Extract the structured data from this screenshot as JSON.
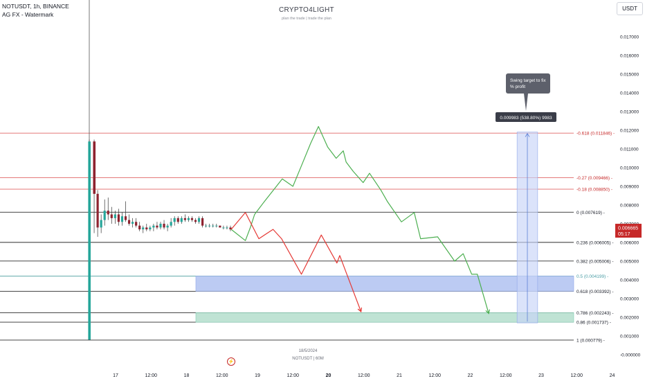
{
  "header": {
    "symbol_line": "NOTUSDT, 1h, BINANCE",
    "indicator_line": "AG FX - Watermark"
  },
  "watermark": {
    "title": "CRYPTO4LIGHT",
    "subtitle": "plan the trade | trade the plan"
  },
  "currency_button": "USDT",
  "footer": {
    "date": "18/5/2024",
    "symbol": "NOTUSDT | 60M"
  },
  "colors": {
    "candle_up": "#26a69a",
    "candle_down": "#8e2330",
    "bull_path": "#4caf50",
    "bear_path": "#e53935",
    "blue_zone": "#bccbf3",
    "green_zone": "#bfe3d4",
    "price_tag": "#c62828",
    "target_line": "#e06666",
    "grey_line": "#787b86"
  },
  "chart_data": {
    "type": "candlestick",
    "x_ticks": [
      "17",
      "12:00",
      "18",
      "12:00",
      "19",
      "12:00",
      "20",
      "12:00",
      "21",
      "12:00",
      "22",
      "12:00",
      "23",
      "12:00",
      "24"
    ],
    "y_ticks": [
      "0.017000",
      "0.016000",
      "0.015000",
      "0.014000",
      "0.013000",
      "0.012000",
      "0.011000",
      "0.010000",
      "0.009000",
      "0.008000",
      "0.007000",
      "0.006000",
      "0.005000",
      "0.004000",
      "0.003000",
      "0.002000",
      "0.001000",
      "-0.000000"
    ],
    "ylim": [
      -0.0001,
      0.0179
    ],
    "current_price": {
      "value": "0.006665",
      "countdown": "05:17",
      "y": 0.006665
    },
    "fib_levels": [
      {
        "label": "-0.618 (0.011846)",
        "y": 0.011846,
        "kind": "target"
      },
      {
        "label": "-0.27 (0.009466)",
        "y": 0.009466,
        "kind": "target"
      },
      {
        "label": "-0.18 (0.008850)",
        "y": 0.00885,
        "kind": "target"
      },
      {
        "label": "0 (0.007619)",
        "y": 0.007619,
        "kind": "grey"
      },
      {
        "label": "0.236 (0.006005)",
        "y": 0.006005,
        "kind": "grey"
      },
      {
        "label": "0.382 (0.005006)",
        "y": 0.005006,
        "kind": "grey"
      },
      {
        "label": "0.5 (0.004199)",
        "y": 0.004199,
        "kind": "teal"
      },
      {
        "label": "0.618 (0.003392)",
        "y": 0.003392,
        "kind": "grey"
      },
      {
        "label": "0.786 (0.002243)",
        "y": 0.002243,
        "kind": "grey"
      },
      {
        "label": "0.86 (0.001737)",
        "y": 0.001737,
        "kind": "grey"
      },
      {
        "label": "1 (0.000779)",
        "y": 0.000779,
        "kind": "grey"
      }
    ],
    "zones": [
      {
        "name": "blue-zone",
        "x_start": 40.0,
        "x_end": 56.0,
        "y_low": 0.003392,
        "y_high": 0.004199
      },
      {
        "name": "green-zone",
        "x_start": 40.0,
        "x_end": 56.0,
        "y_low": 0.001737,
        "y_high": 0.002243
      }
    ],
    "candles": [
      {
        "x": 16.96,
        "o": 0.0008,
        "h": 0.0115,
        "l": 0.0008,
        "c": 0.0114
      },
      {
        "x": 17.0,
        "o": 0.0114,
        "h": 0.0115,
        "l": 0.0065,
        "c": 0.0086
      },
      {
        "x": 17.04,
        "o": 0.0086,
        "h": 0.0088,
        "l": 0.0063,
        "c": 0.0068
      },
      {
        "x": 17.08,
        "o": 0.0068,
        "h": 0.0075,
        "l": 0.0065,
        "c": 0.0072
      },
      {
        "x": 17.13,
        "o": 0.0072,
        "h": 0.0083,
        "l": 0.0069,
        "c": 0.0077
      },
      {
        "x": 17.17,
        "o": 0.0077,
        "h": 0.0084,
        "l": 0.0072,
        "c": 0.0075
      },
      {
        "x": 17.21,
        "o": 0.0075,
        "h": 0.0079,
        "l": 0.007,
        "c": 0.0073
      },
      {
        "x": 17.25,
        "o": 0.0073,
        "h": 0.0077,
        "l": 0.007,
        "c": 0.0075
      },
      {
        "x": 17.29,
        "o": 0.0075,
        "h": 0.0078,
        "l": 0.0069,
        "c": 0.0071
      },
      {
        "x": 17.33,
        "o": 0.0071,
        "h": 0.0076,
        "l": 0.0069,
        "c": 0.0074
      },
      {
        "x": 17.38,
        "o": 0.0074,
        "h": 0.0082,
        "l": 0.0071,
        "c": 0.0072
      },
      {
        "x": 17.42,
        "o": 0.0072,
        "h": 0.0075,
        "l": 0.0069,
        "c": 0.007
      },
      {
        "x": 17.46,
        "o": 0.007,
        "h": 0.0073,
        "l": 0.0068,
        "c": 0.0071
      },
      {
        "x": 17.5,
        "o": 0.0071,
        "h": 0.0073,
        "l": 0.0068,
        "c": 0.0069
      },
      {
        "x": 17.54,
        "o": 0.0069,
        "h": 0.0071,
        "l": 0.0066,
        "c": 0.0067
      },
      {
        "x": 17.58,
        "o": 0.0067,
        "h": 0.0069,
        "l": 0.0065,
        "c": 0.0068
      },
      {
        "x": 17.63,
        "o": 0.0068,
        "h": 0.007,
        "l": 0.0066,
        "c": 0.0067
      },
      {
        "x": 17.67,
        "o": 0.0067,
        "h": 0.0069,
        "l": 0.0066,
        "c": 0.0068
      },
      {
        "x": 17.71,
        "o": 0.0068,
        "h": 0.007,
        "l": 0.0066,
        "c": 0.0069
      },
      {
        "x": 17.75,
        "o": 0.0069,
        "h": 0.0071,
        "l": 0.0067,
        "c": 0.0068
      },
      {
        "x": 17.79,
        "o": 0.0068,
        "h": 0.0071,
        "l": 0.0067,
        "c": 0.007
      },
      {
        "x": 17.83,
        "o": 0.007,
        "h": 0.0072,
        "l": 0.0067,
        "c": 0.0068
      },
      {
        "x": 17.88,
        "o": 0.0068,
        "h": 0.007,
        "l": 0.0066,
        "c": 0.0069
      },
      {
        "x": 17.92,
        "o": 0.0069,
        "h": 0.0073,
        "l": 0.0068,
        "c": 0.0071
      },
      {
        "x": 17.96,
        "o": 0.0071,
        "h": 0.0074,
        "l": 0.0069,
        "c": 0.0073
      },
      {
        "x": 18.0,
        "o": 0.0073,
        "h": 0.0074,
        "l": 0.007,
        "c": 0.0071
      },
      {
        "x": 18.04,
        "o": 0.0071,
        "h": 0.0074,
        "l": 0.007,
        "c": 0.0073
      },
      {
        "x": 18.08,
        "o": 0.0073,
        "h": 0.0075,
        "l": 0.0071,
        "c": 0.0072
      },
      {
        "x": 18.13,
        "o": 0.0072,
        "h": 0.0074,
        "l": 0.0071,
        "c": 0.0073
      },
      {
        "x": 18.17,
        "o": 0.0073,
        "h": 0.0074,
        "l": 0.0071,
        "c": 0.0072
      },
      {
        "x": 18.21,
        "o": 0.0072,
        "h": 0.0073,
        "l": 0.007,
        "c": 0.0071
      },
      {
        "x": 18.25,
        "o": 0.0071,
        "h": 0.0074,
        "l": 0.007,
        "c": 0.0073
      },
      {
        "x": 18.29,
        "o": 0.0073,
        "h": 0.0074,
        "l": 0.0068,
        "c": 0.0069
      },
      {
        "x": 18.33,
        "o": 0.0069,
        "h": 0.007,
        "l": 0.0068,
        "c": 0.0069
      },
      {
        "x": 18.38,
        "o": 0.0069,
        "h": 0.007,
        "l": 0.0068,
        "c": 0.0069
      },
      {
        "x": 18.42,
        "o": 0.0069,
        "h": 0.007,
        "l": 0.0068,
        "c": 0.0069
      },
      {
        "x": 18.46,
        "o": 0.0069,
        "h": 0.007,
        "l": 0.0068,
        "c": 0.0069
      },
      {
        "x": 18.5,
        "o": 0.0069,
        "h": 0.0069,
        "l": 0.0068,
        "c": 0.0068
      },
      {
        "x": 18.54,
        "o": 0.0068,
        "h": 0.0069,
        "l": 0.0067,
        "c": 0.0068
      },
      {
        "x": 18.58,
        "o": 0.0068,
        "h": 0.0069,
        "l": 0.0067,
        "c": 0.0068
      },
      {
        "x": 18.63,
        "o": 0.0068,
        "h": 0.0069,
        "l": 0.0066,
        "c": 0.0067
      }
    ],
    "bull_path": [
      [
        18.63,
        0.0067
      ],
      [
        18.83,
        0.0061
      ],
      [
        18.9,
        0.0068
      ],
      [
        18.96,
        0.0075
      ],
      [
        19.1,
        0.0082
      ],
      [
        19.35,
        0.0094
      ],
      [
        19.5,
        0.009
      ],
      [
        19.62,
        0.0101
      ],
      [
        19.75,
        0.0113
      ],
      [
        19.86,
        0.0122
      ],
      [
        19.99,
        0.0111
      ],
      [
        20.11,
        0.0105
      ],
      [
        20.21,
        0.0109
      ],
      [
        20.25,
        0.0103
      ],
      [
        20.35,
        0.0098
      ],
      [
        20.49,
        0.0092
      ],
      [
        20.58,
        0.0097
      ],
      [
        20.74,
        0.0088
      ],
      [
        20.83,
        0.0082
      ],
      [
        21.03,
        0.0071
      ],
      [
        21.21,
        0.0076
      ],
      [
        21.3,
        0.0062
      ],
      [
        21.54,
        0.0063
      ],
      [
        21.78,
        0.005
      ],
      [
        21.9,
        0.0054
      ],
      [
        22.02,
        0.0043
      ],
      [
        22.1,
        0.0043
      ],
      [
        22.26,
        0.0022
      ]
    ],
    "bear_path": [
      [
        18.63,
        0.0067
      ],
      [
        18.83,
        0.0076
      ],
      [
        19.02,
        0.0062
      ],
      [
        19.22,
        0.0067
      ],
      [
        19.34,
        0.0062
      ],
      [
        19.62,
        0.0043
      ],
      [
        19.9,
        0.0064
      ],
      [
        20.12,
        0.0049
      ],
      [
        20.16,
        0.0053
      ],
      [
        20.46,
        0.0023
      ]
    ],
    "target_measure": {
      "label": "0.009983 (538.80%) 9983",
      "x_start": 22.66,
      "x_end": 22.95,
      "y_low": 0.0017,
      "y_high": 0.0119,
      "tooltip": "Swing target to fix % profit"
    }
  }
}
